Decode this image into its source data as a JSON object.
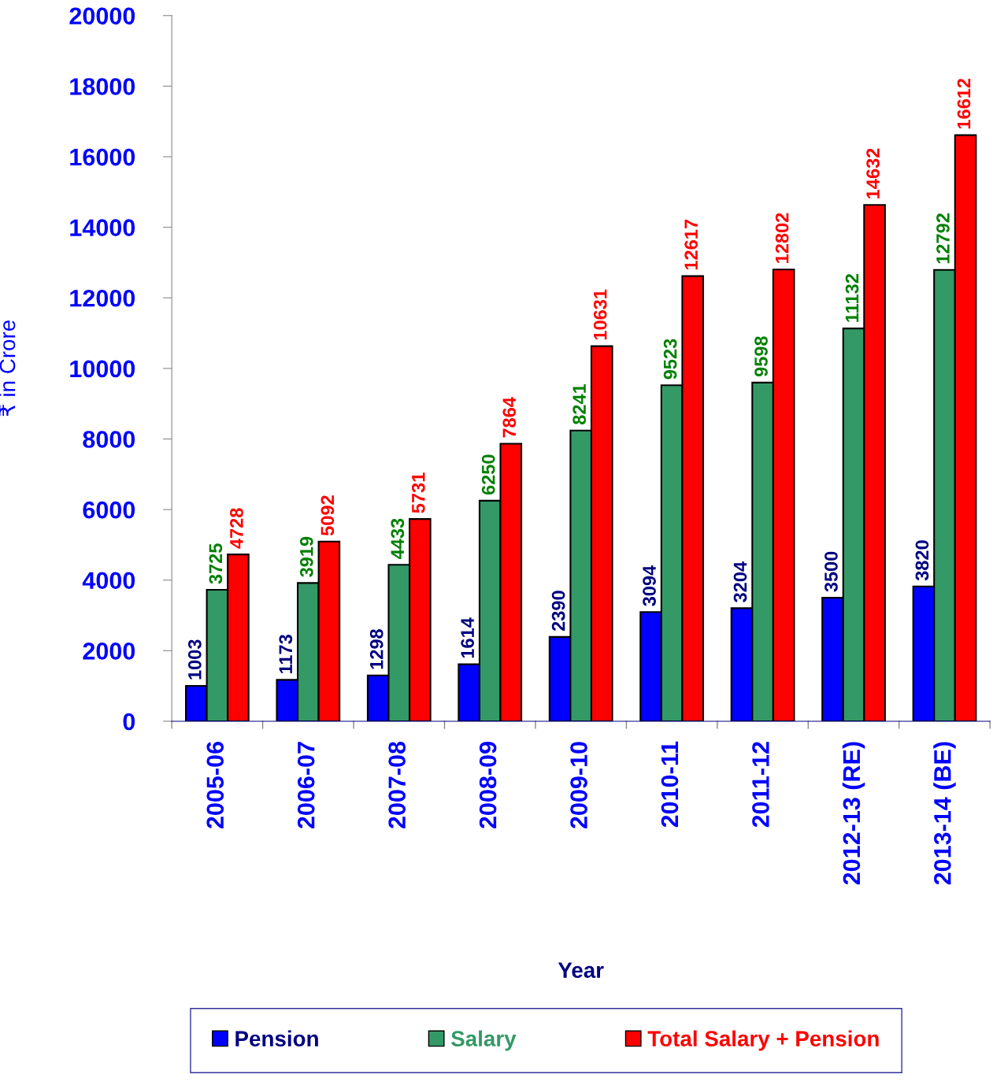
{
  "chart_data": {
    "type": "bar",
    "xlabel": "Year",
    "ylabel": "₹ in Crore",
    "categories": [
      "2005-06",
      "2006-07",
      "2007-08",
      "2008-09",
      "2009-10",
      "2010-11",
      "2011-12",
      "2012-13 (RE)",
      "2013-14 (BE)"
    ],
    "series": [
      {
        "name": "Pension",
        "color": "#0000ff",
        "values": [
          1003,
          1173,
          1298,
          1614,
          2390,
          3094,
          3204,
          3500,
          3820
        ]
      },
      {
        "name": "Salary",
        "color": "#339966",
        "values": [
          3725,
          3919,
          4433,
          6250,
          8241,
          9523,
          9598,
          11132,
          12792
        ]
      },
      {
        "name": "Total Salary + Pension",
        "color": "#ff0000",
        "values": [
          4728,
          5092,
          5731,
          7864,
          10631,
          12617,
          12802,
          14632,
          16612
        ]
      }
    ],
    "ylim": [
      0,
      20000
    ],
    "yticks": [
      0,
      2000,
      4000,
      6000,
      8000,
      10000,
      12000,
      14000,
      16000,
      18000,
      20000
    ],
    "data_labels": true,
    "grid": false,
    "legend": "bottom"
  }
}
